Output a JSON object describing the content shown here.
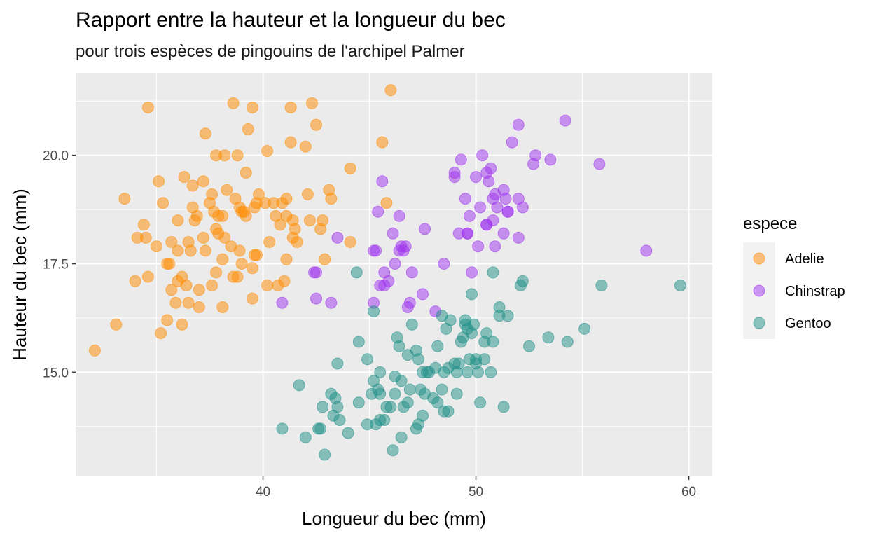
{
  "chart_data": {
    "type": "scatter",
    "title": "Rapport entre la hauteur et la longueur du bec",
    "subtitle": "pour trois espèces de pingouins de l'archipel Palmer",
    "xlabel": "Longueur du bec (mm)",
    "ylabel": "Hauteur du bec (mm)",
    "xlim": [
      31.2,
      61.1
    ],
    "ylim": [
      12.6,
      21.9
    ],
    "x_ticks": [
      40,
      50,
      60
    ],
    "y_ticks": [
      15.0,
      17.5,
      20.0
    ],
    "x_tick_labels": [
      "40",
      "50",
      "60"
    ],
    "y_tick_labels": [
      "15.0",
      "17.5",
      "20.0"
    ],
    "grid": true,
    "legend": {
      "title": "espece",
      "position": "right"
    },
    "series": [
      {
        "name": "Adelie",
        "color": "#FF8C00",
        "points": [
          [
            32.1,
            15.5
          ],
          [
            33.1,
            16.1
          ],
          [
            33.5,
            19.0
          ],
          [
            34.0,
            17.1
          ],
          [
            34.1,
            18.1
          ],
          [
            34.4,
            18.4
          ],
          [
            34.5,
            18.1
          ],
          [
            34.6,
            21.1
          ],
          [
            34.6,
            17.2
          ],
          [
            35.0,
            17.9
          ],
          [
            35.1,
            19.4
          ],
          [
            35.2,
            15.9
          ],
          [
            35.3,
            18.9
          ],
          [
            35.5,
            17.5
          ],
          [
            35.5,
            16.2
          ],
          [
            35.6,
            17.5
          ],
          [
            35.7,
            16.9
          ],
          [
            35.7,
            18.0
          ],
          [
            35.9,
            16.6
          ],
          [
            36.0,
            17.8
          ],
          [
            36.0,
            17.1
          ],
          [
            36.0,
            18.5
          ],
          [
            36.2,
            17.2
          ],
          [
            36.2,
            16.1
          ],
          [
            36.3,
            19.5
          ],
          [
            36.4,
            17.0
          ],
          [
            36.5,
            18.0
          ],
          [
            36.6,
            17.8
          ],
          [
            36.7,
            18.8
          ],
          [
            36.7,
            19.3
          ],
          [
            36.8,
            18.5
          ],
          [
            36.9,
            18.6
          ],
          [
            37.0,
            16.9
          ],
          [
            37.2,
            18.1
          ],
          [
            37.2,
            19.4
          ],
          [
            37.3,
            20.5
          ],
          [
            37.3,
            17.8
          ],
          [
            37.5,
            18.9
          ],
          [
            37.6,
            19.1
          ],
          [
            37.6,
            17.0
          ],
          [
            37.7,
            18.7
          ],
          [
            37.8,
            18.3
          ],
          [
            37.8,
            20.0
          ],
          [
            37.9,
            18.6
          ],
          [
            38.1,
            18.6
          ],
          [
            38.1,
            17.6
          ],
          [
            38.1,
            16.5
          ],
          [
            38.2,
            18.1
          ],
          [
            38.2,
            20.0
          ],
          [
            38.5,
            17.9
          ],
          [
            38.6,
            21.2
          ],
          [
            38.6,
            17.2
          ],
          [
            38.7,
            19.0
          ],
          [
            38.8,
            17.2
          ],
          [
            38.8,
            20.0
          ],
          [
            38.9,
            18.8
          ],
          [
            39.0,
            17.5
          ],
          [
            39.1,
            18.7
          ],
          [
            39.2,
            19.6
          ],
          [
            39.2,
            18.6
          ],
          [
            39.3,
            20.6
          ],
          [
            39.5,
            17.4
          ],
          [
            39.5,
            16.7
          ],
          [
            39.6,
            17.7
          ],
          [
            39.6,
            18.8
          ],
          [
            39.7,
            17.7
          ],
          [
            39.7,
            18.9
          ],
          [
            39.8,
            19.1
          ],
          [
            40.1,
            18.9
          ],
          [
            40.2,
            17.0
          ],
          [
            40.3,
            18.0
          ],
          [
            40.5,
            18.9
          ],
          [
            40.6,
            18.6
          ],
          [
            40.7,
            17.0
          ],
          [
            40.8,
            18.4
          ],
          [
            40.9,
            18.9
          ],
          [
            41.0,
            17.1
          ],
          [
            41.1,
            18.6
          ],
          [
            41.1,
            17.6
          ],
          [
            41.3,
            20.3
          ],
          [
            41.4,
            18.5
          ],
          [
            41.5,
            18.3
          ],
          [
            41.6,
            18.0
          ],
          [
            42.0,
            20.2
          ],
          [
            42.1,
            19.1
          ],
          [
            42.2,
            18.5
          ],
          [
            42.3,
            21.2
          ],
          [
            42.5,
            20.7
          ],
          [
            42.7,
            18.3
          ],
          [
            42.8,
            18.5
          ],
          [
            42.9,
            17.6
          ],
          [
            43.1,
            19.2
          ],
          [
            43.2,
            19.0
          ],
          [
            44.1,
            19.7
          ],
          [
            44.1,
            18.0
          ],
          [
            45.6,
            20.3
          ],
          [
            45.8,
            18.9
          ],
          [
            46.0,
            21.5
          ],
          [
            39.5,
            21.1
          ],
          [
            41.3,
            21.1
          ],
          [
            37.8,
            17.3
          ],
          [
            38.9,
            17.8
          ],
          [
            40.2,
            20.1
          ],
          [
            41.1,
            19.0
          ],
          [
            36.5,
            16.6
          ],
          [
            37.0,
            16.5
          ],
          [
            38.3,
            19.2
          ],
          [
            39.0,
            18.7
          ],
          [
            41.4,
            18.1
          ],
          [
            37.9,
            18.2
          ]
        ]
      },
      {
        "name": "Chinstrap",
        "color": "#A034F0",
        "points": [
          [
            40.9,
            16.6
          ],
          [
            42.4,
            17.3
          ],
          [
            42.5,
            16.7
          ],
          [
            42.5,
            17.3
          ],
          [
            43.2,
            16.6
          ],
          [
            43.5,
            18.1
          ],
          [
            45.2,
            17.8
          ],
          [
            45.2,
            16.6
          ],
          [
            45.4,
            18.7
          ],
          [
            45.5,
            17.0
          ],
          [
            45.6,
            19.4
          ],
          [
            45.7,
            17.3
          ],
          [
            45.7,
            17.0
          ],
          [
            45.9,
            17.1
          ],
          [
            46.1,
            18.2
          ],
          [
            46.2,
            17.5
          ],
          [
            46.4,
            18.6
          ],
          [
            46.4,
            17.8
          ],
          [
            46.6,
            17.8
          ],
          [
            46.7,
            17.9
          ],
          [
            46.8,
            16.5
          ],
          [
            47.0,
            17.3
          ],
          [
            47.5,
            16.8
          ],
          [
            47.6,
            18.3
          ],
          [
            48.1,
            16.4
          ],
          [
            48.5,
            17.5
          ],
          [
            49.0,
            19.5
          ],
          [
            49.2,
            18.2
          ],
          [
            49.3,
            19.9
          ],
          [
            49.5,
            19.0
          ],
          [
            49.6,
            18.2
          ],
          [
            49.7,
            18.6
          ],
          [
            49.8,
            17.3
          ],
          [
            50.0,
            19.5
          ],
          [
            50.1,
            17.9
          ],
          [
            50.2,
            18.8
          ],
          [
            50.3,
            20.0
          ],
          [
            50.5,
            18.4
          ],
          [
            50.5,
            19.6
          ],
          [
            50.6,
            19.4
          ],
          [
            50.7,
            19.7
          ],
          [
            50.8,
            18.5
          ],
          [
            50.8,
            19.0
          ],
          [
            50.9,
            19.1
          ],
          [
            51.0,
            18.8
          ],
          [
            51.3,
            19.2
          ],
          [
            51.3,
            18.2
          ],
          [
            51.4,
            19.0
          ],
          [
            51.5,
            18.7
          ],
          [
            51.7,
            20.3
          ],
          [
            52.0,
            18.1
          ],
          [
            52.0,
            19.0
          ],
          [
            52.0,
            20.7
          ],
          [
            52.2,
            18.8
          ],
          [
            52.7,
            19.8
          ],
          [
            52.8,
            20.0
          ],
          [
            53.5,
            19.9
          ],
          [
            54.2,
            20.8
          ],
          [
            55.8,
            19.8
          ],
          [
            58.0,
            17.8
          ],
          [
            46.9,
            16.6
          ],
          [
            45.3,
            17.8
          ],
          [
            49.0,
            19.6
          ],
          [
            50.9,
            17.9
          ],
          [
            51.5,
            18.7
          ],
          [
            46.5,
            17.9
          ],
          [
            49.6,
            18.2
          ],
          [
            50.5,
            18.4
          ]
        ]
      },
      {
        "name": "Gentoo",
        "color": "#1F9088",
        "points": [
          [
            40.9,
            13.7
          ],
          [
            41.7,
            14.7
          ],
          [
            42.0,
            13.5
          ],
          [
            42.6,
            13.7
          ],
          [
            42.7,
            13.7
          ],
          [
            42.8,
            14.2
          ],
          [
            42.9,
            13.1
          ],
          [
            43.2,
            14.5
          ],
          [
            43.3,
            14.0
          ],
          [
            43.4,
            14.4
          ],
          [
            43.5,
            15.2
          ],
          [
            43.5,
            14.2
          ],
          [
            43.6,
            13.9
          ],
          [
            44.0,
            13.6
          ],
          [
            44.4,
            17.3
          ],
          [
            44.5,
            14.3
          ],
          [
            44.5,
            15.7
          ],
          [
            44.9,
            13.8
          ],
          [
            45.1,
            14.5
          ],
          [
            45.2,
            14.8
          ],
          [
            45.3,
            13.8
          ],
          [
            45.4,
            14.6
          ],
          [
            45.5,
            13.9
          ],
          [
            45.5,
            15.0
          ],
          [
            45.7,
            13.9
          ],
          [
            45.8,
            14.2
          ],
          [
            46.1,
            13.2
          ],
          [
            46.2,
            14.5
          ],
          [
            46.2,
            14.9
          ],
          [
            46.3,
            15.8
          ],
          [
            46.4,
            15.6
          ],
          [
            46.5,
            14.8
          ],
          [
            46.5,
            13.5
          ],
          [
            46.6,
            14.2
          ],
          [
            46.8,
            15.4
          ],
          [
            46.8,
            14.3
          ],
          [
            46.9,
            14.6
          ],
          [
            47.2,
            13.7
          ],
          [
            47.2,
            15.5
          ],
          [
            47.3,
            13.8
          ],
          [
            47.4,
            14.6
          ],
          [
            47.5,
            14.0
          ],
          [
            47.5,
            15.0
          ],
          [
            47.6,
            14.5
          ],
          [
            47.7,
            15.0
          ],
          [
            47.8,
            15.0
          ],
          [
            48.1,
            15.1
          ],
          [
            48.2,
            14.3
          ],
          [
            48.2,
            15.6
          ],
          [
            48.4,
            14.6
          ],
          [
            48.4,
            16.3
          ],
          [
            48.5,
            14.1
          ],
          [
            48.5,
            15.0
          ],
          [
            48.6,
            16.0
          ],
          [
            48.7,
            14.1
          ],
          [
            48.7,
            15.1
          ],
          [
            48.8,
            16.2
          ],
          [
            49.0,
            15.2
          ],
          [
            49.1,
            14.5
          ],
          [
            49.1,
            15.0
          ],
          [
            49.2,
            15.2
          ],
          [
            49.3,
            15.7
          ],
          [
            49.4,
            15.8
          ],
          [
            49.5,
            16.2
          ],
          [
            49.5,
            16.1
          ],
          [
            49.6,
            16.0
          ],
          [
            49.6,
            15.0
          ],
          [
            49.8,
            16.8
          ],
          [
            49.8,
            15.9
          ],
          [
            49.9,
            16.1
          ],
          [
            50.0,
            15.2
          ],
          [
            50.0,
            15.3
          ],
          [
            50.1,
            15.0
          ],
          [
            50.2,
            14.3
          ],
          [
            50.4,
            15.3
          ],
          [
            50.4,
            15.7
          ],
          [
            50.5,
            15.9
          ],
          [
            50.7,
            15.0
          ],
          [
            50.8,
            15.7
          ],
          [
            50.8,
            17.3
          ],
          [
            51.1,
            16.3
          ],
          [
            51.1,
            16.5
          ],
          [
            51.3,
            14.2
          ],
          [
            51.5,
            16.3
          ],
          [
            52.1,
            17.0
          ],
          [
            52.2,
            17.1
          ],
          [
            52.5,
            15.6
          ],
          [
            53.4,
            15.8
          ],
          [
            54.3,
            15.7
          ],
          [
            55.1,
            16.0
          ],
          [
            55.9,
            17.0
          ],
          [
            59.6,
            17.0
          ],
          [
            45.2,
            16.4
          ],
          [
            46.0,
            14.2
          ],
          [
            47.3,
            15.3
          ],
          [
            48.0,
            14.4
          ],
          [
            49.7,
            15.3
          ],
          [
            47.0,
            16.1
          ],
          [
            44.9,
            15.3
          ],
          [
            45.5,
            14.5
          ]
        ]
      }
    ]
  }
}
